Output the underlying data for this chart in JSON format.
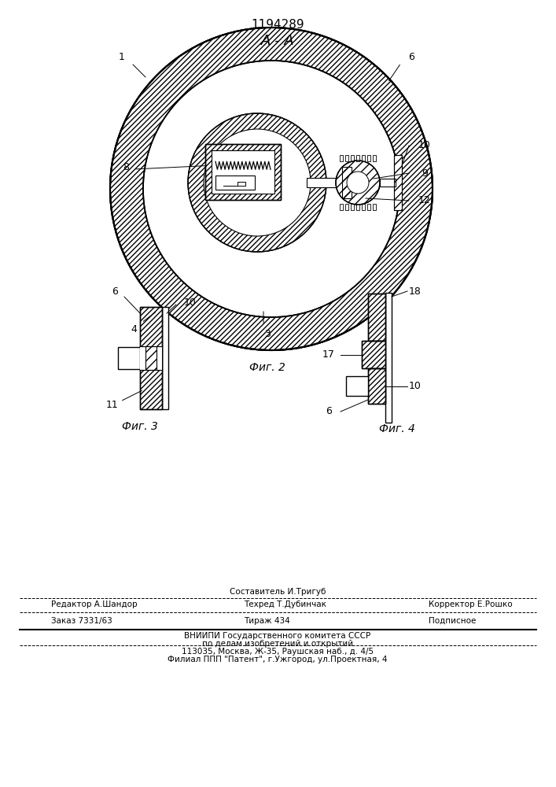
{
  "patent_number": "1194289",
  "section_label": "А - А",
  "fig2_label": "Фиг. 2",
  "fig3_label": "Фиг. 3",
  "fig4_label": "Фиг. 4",
  "bg_color": "#ffffff",
  "line_color": "#000000",
  "footer_line1": "Составитель И.Тригуб",
  "footer_editor": "Редактор А.Шандор",
  "footer_tech": "Техред Т.Дубинчак",
  "footer_corrector": "Корректор Е.Рошко",
  "footer_order": "Заказ 7331/63",
  "footer_tirazh": "Тираж 434",
  "footer_podpisnoe": "Подписное",
  "footer_vniip": "ВНИИПИ Государственного комитета СССР",
  "footer_po": "по делам изобретений и открытий",
  "footer_addr": "113035, Москва, Ж-35, Раушская наб., д. 4/5",
  "footer_filial": "Филиал ППП \"Патент\", г.Ужгород, ул.Проектная, 4"
}
